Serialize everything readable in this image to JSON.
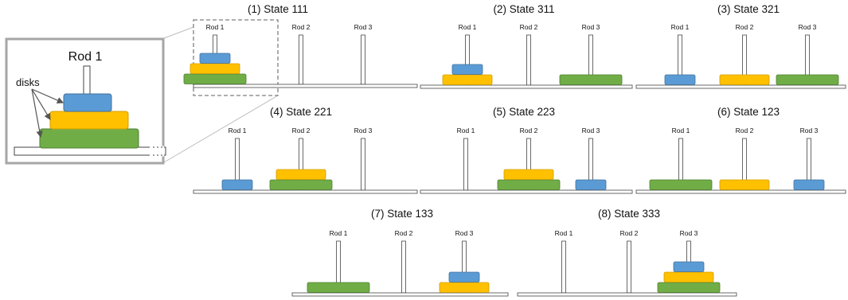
{
  "colors": {
    "small": "#5b9bd5",
    "small_stroke": "#41719c",
    "medium": "#ffc000",
    "medium_stroke": "#d19e00",
    "large": "#70ad47",
    "large_stroke": "#4f7f31",
    "rod_stroke": "#444444",
    "frame": "#a6a6a6"
  },
  "zoom": {
    "title": "Rod 1",
    "disks_label": "disks"
  },
  "states": [
    {
      "title": "(1) State 111",
      "rod_labels": [
        "Rod 1",
        "Rod 2",
        "Rod 3"
      ],
      "code": "111",
      "highlighted": true
    },
    {
      "title": "(2) State 311",
      "rod_labels": [
        "Rod 1",
        "Rod 2",
        "Rod 3"
      ],
      "code": "311"
    },
    {
      "title": "(3) State 321",
      "rod_labels": [
        "Rod 1",
        "Rod 2",
        "Rod 3"
      ],
      "code": "321"
    },
    {
      "title": "(4) State 221",
      "rod_labels": [
        "Rod 1",
        "Rod 2",
        "Rod 3"
      ],
      "code": "221"
    },
    {
      "title": "(5) State 223",
      "rod_labels": [
        "Rod 1",
        "Rod 2",
        "Rod 3"
      ],
      "code": "223"
    },
    {
      "title": "(6) State 123",
      "rod_labels": [
        "Rod 1",
        "Rod 2",
        "Rod 3"
      ],
      "code": "123"
    },
    {
      "title": "(7) State 133",
      "rod_labels": [
        "Rod 1",
        "Rod 2",
        "Rod 3"
      ],
      "code": "133"
    },
    {
      "title": "(8) State 333",
      "rod_labels": [
        "Rod 1",
        "Rod 2",
        "Rod 3"
      ],
      "code": "333"
    }
  ]
}
